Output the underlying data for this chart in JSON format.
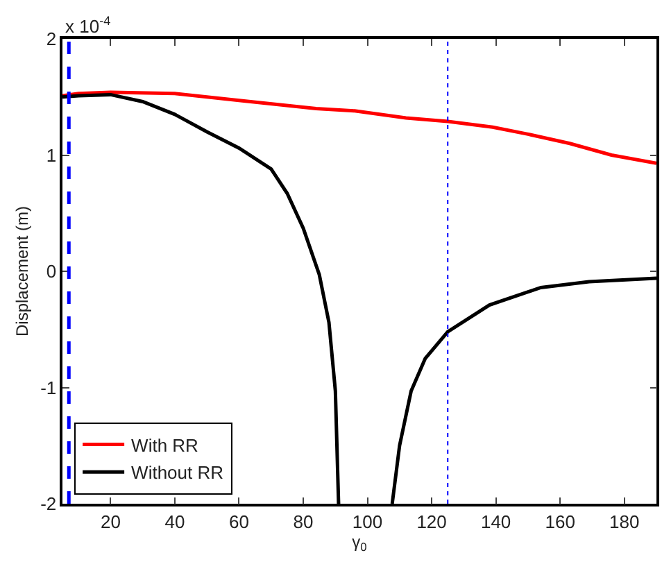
{
  "chart_data": {
    "type": "line",
    "xlabel": "γ$_{0}$",
    "ylabel": "Displacement (m)",
    "annotations": [
      "x 10$^{-4}$"
    ],
    "xlim": [
      5,
      190
    ],
    "xticks": [
      20,
      40,
      60,
      80,
      100,
      120,
      140,
      160,
      180
    ],
    "ylim": [
      -2,
      2
    ],
    "yticks": [
      -2,
      -1,
      0,
      1,
      2
    ],
    "series": [
      {
        "name": "With RR",
        "color": "#ff0000",
        "x": [
          5,
          10,
          20,
          40,
          60,
          84,
          96,
          112,
          125,
          139,
          150,
          163,
          176,
          190
        ],
        "values": [
          1.51,
          1.53,
          1.54,
          1.53,
          1.47,
          1.4,
          1.38,
          1.32,
          1.29,
          1.24,
          1.18,
          1.1,
          1.0,
          0.93
        ]
      },
      {
        "name": "Without RR",
        "color": "#000000",
        "x": [
          5,
          10,
          20,
          30,
          40,
          50,
          60,
          70,
          75,
          80,
          85,
          88,
          90,
          91,
          null,
          107.7,
          110,
          113.6,
          118,
          125,
          138,
          154,
          169,
          190
        ],
        "values": [
          1.5,
          1.51,
          1.52,
          1.46,
          1.35,
          1.2,
          1.06,
          0.88,
          0.67,
          0.37,
          -0.03,
          -0.44,
          -1.03,
          -2,
          null,
          -2,
          -1.5,
          -1.03,
          -0.75,
          -0.52,
          -0.29,
          -0.14,
          -0.09,
          -0.06
        ]
      }
    ],
    "ref_lines": [
      {
        "axis": "x",
        "value": 7,
        "color": "#0000ff",
        "line_style": "dashed"
      },
      {
        "axis": "x",
        "value": 125,
        "color": "#0000ff",
        "line_style": "dotted"
      }
    ],
    "legend": "bottom left",
    "line_style": "solid"
  }
}
